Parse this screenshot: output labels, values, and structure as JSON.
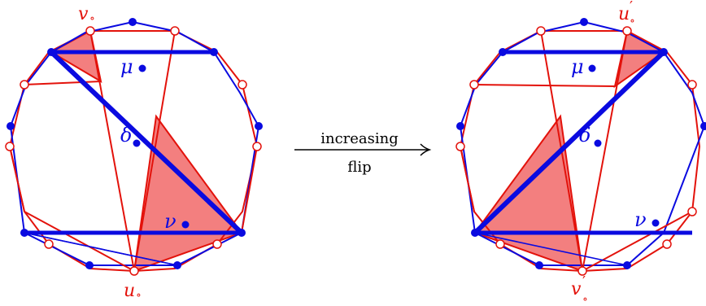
{
  "colors": {
    "red": "#e3120b",
    "blue": "#0a0ae0",
    "fill": "#f37f7f",
    "black": "#000000"
  },
  "arrow": {
    "label_top": "increasing",
    "label_bottom": "flip"
  },
  "left": {
    "label_v": "v",
    "label_u": "u",
    "sub": "∘",
    "mu": "μ",
    "delta": "δ",
    "nu": "ν"
  },
  "right": {
    "label_u": "u",
    "label_v": "v",
    "prime": "′",
    "sub": "∘",
    "mu": "μ",
    "delta": "δ",
    "nu": "ν"
  }
}
